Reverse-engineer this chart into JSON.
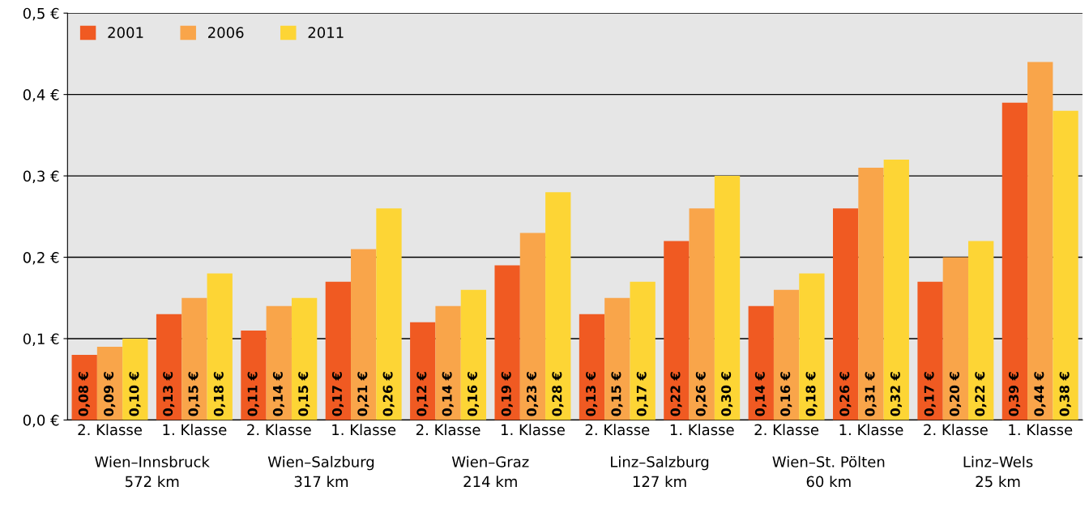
{
  "chart_data": {
    "type": "bar",
    "categories": [
      "2. Klasse",
      "1. Klasse",
      "2. Klasse",
      "1. Klasse",
      "2. Klasse",
      "1. Klasse",
      "2. Klasse",
      "1. Klasse",
      "2. Klasse",
      "1. Klasse",
      "2. Klasse",
      "1. Klasse"
    ],
    "series": [
      {
        "name": "2001",
        "color": "#f05a22",
        "values": [
          0.08,
          0.13,
          0.11,
          0.17,
          0.12,
          0.19,
          0.13,
          0.22,
          0.14,
          0.26,
          0.17,
          0.39
        ],
        "value_labels": [
          "0,08 €",
          "0,13 €",
          "0,11 €",
          "0,17 €",
          "0,12 €",
          "0,19 €",
          "0,13 €",
          "0,22 €",
          "0,14 €",
          "0,26 €",
          "0,17 €",
          "0,39 €"
        ]
      },
      {
        "name": "2006",
        "color": "#f9a54a",
        "values": [
          0.09,
          0.15,
          0.14,
          0.21,
          0.14,
          0.23,
          0.15,
          0.26,
          0.16,
          0.31,
          0.2,
          0.44
        ],
        "value_labels": [
          "0,09 €",
          "0,15 €",
          "0,14 €",
          "0,21 €",
          "0,14 €",
          "0,23 €",
          "0,15 €",
          "0,26 €",
          "0,16 €",
          "0,31 €",
          "0,20 €",
          "0,44 €"
        ]
      },
      {
        "name": "2011",
        "color": "#fdd535",
        "values": [
          0.1,
          0.18,
          0.15,
          0.26,
          0.16,
          0.28,
          0.17,
          0.3,
          0.18,
          0.32,
          0.22,
          0.38
        ],
        "value_labels": [
          "0,10 €",
          "0,18 €",
          "0,15 €",
          "0,26 €",
          "0,16 €",
          "0,28 €",
          "0,17 €",
          "0,30 €",
          "0,18 €",
          "0,32 €",
          "0,22 €",
          "0,38 €"
        ]
      }
    ],
    "ylim": [
      0,
      0.5
    ],
    "yticks": [
      {
        "value": 0,
        "label": "0,0 €"
      },
      {
        "value": 0.1,
        "label": "0,1 €"
      },
      {
        "value": 0.2,
        "label": "0,2 €"
      },
      {
        "value": 0.3,
        "label": "0,3 €"
      },
      {
        "value": 0.4,
        "label": "0,4 €"
      },
      {
        "value": 0.5,
        "label": "0,5 €"
      }
    ],
    "grid": "y",
    "legend": "top left",
    "annotations": [
      "Wien–Innsbruck\n572 km",
      "Wien–Salzburg\n317 km",
      "Wien–Graz\n214 km",
      "Linz–Salzburg\n127 km",
      "Wien–St. Pölten\n60 km",
      "Linz–Wels\n25 km"
    ]
  }
}
